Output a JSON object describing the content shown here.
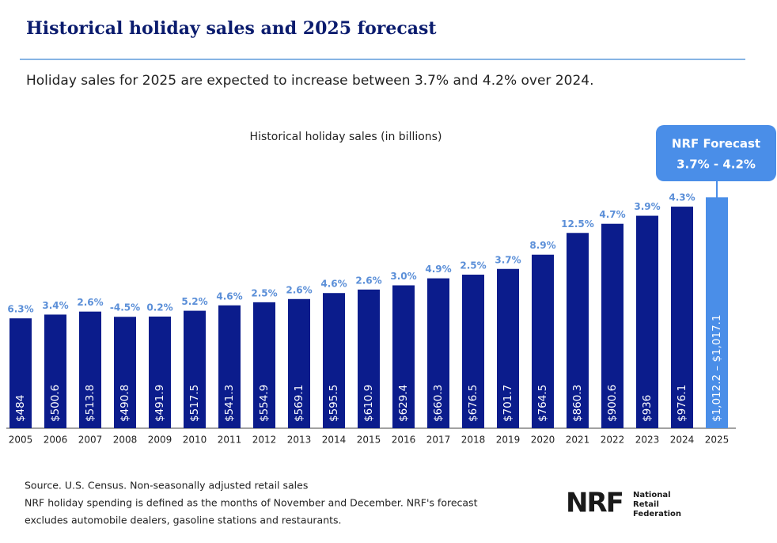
{
  "chart_data": {
    "type": "bar",
    "title": "Historical holiday sales and 2025 forecast",
    "subtitle": "Holiday sales for 2025 are expected to increase between 3.7% and 4.2% over 2024.",
    "chart_label": "Historical holiday sales (in billions)",
    "color": "#0b1c8c",
    "label_color": "#5b8fd8",
    "categories": [
      "2005",
      "2006",
      "2007",
      "2008",
      "2009",
      "2010",
      "2011",
      "2012",
      "2013",
      "2014",
      "2015",
      "2016",
      "2017",
      "2018",
      "2019",
      "2020",
      "2021",
      "2022",
      "2023",
      "2024"
    ],
    "values": [
      484,
      500.6,
      513.8,
      490.8,
      491.9,
      517.5,
      541.3,
      554.9,
      569.1,
      595.5,
      610.9,
      629.4,
      660.3,
      676.5,
      701.7,
      764.5,
      860.3,
      900.6,
      936,
      976.1
    ],
    "value_labels": [
      "$484",
      "$500.6",
      "$513.8",
      "$490.8",
      "$491.9",
      "$517.5",
      "$541.3",
      "$554.9",
      "$569.1",
      "$595.5",
      "$610.9",
      "$629.4",
      "$660.3",
      "$676.5",
      "$701.7",
      "$764.5",
      "$860.3",
      "$900.6",
      "$936",
      "$976.1"
    ],
    "growth_labels": [
      "6.3%",
      "3.4%",
      "2.6%",
      "-4.5%",
      "0.2%",
      "5.2%",
      "4.6%",
      "2.5%",
      "2.6%",
      "4.6%",
      "2.6%",
      "3.0%",
      "4.9%",
      "2.5%",
      "3.7%",
      "8.9%",
      "12.5%",
      "4.7%",
      "3.9%",
      "4.3%"
    ],
    "forecast": {
      "category": "2025",
      "low": 1012.2,
      "high": 1017.1,
      "value_label": "$1,012.2 – $1,017.1",
      "color": "#4a8ee8",
      "callout_title": "NRF Forecast",
      "callout_range": "3.7% - 4.2%"
    },
    "footnotes": [
      "Source. U.S. Census. Non-seasonally adjusted retail sales",
      "NRF holiday spending is defined as the months of November and December. NRF's forecast",
      "excludes automobile dealers, gasoline stations and restaurants."
    ],
    "logo": {
      "mark": "NRF",
      "name_lines": [
        "National",
        "Retail",
        "Federation"
      ]
    }
  }
}
